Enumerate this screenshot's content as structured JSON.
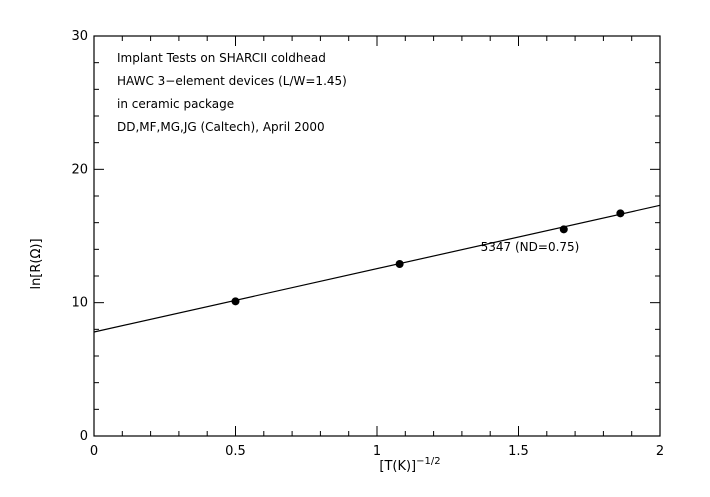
{
  "chart_data": {
    "type": "scatter",
    "xlabel": "[T(K)]",
    "xlabel_superscript": "−1/2",
    "ylabel": "ln[R(Ω)]",
    "xlim": [
      0,
      2
    ],
    "ylim": [
      0,
      30
    ],
    "x_ticks": [
      0,
      0.5,
      1,
      1.5,
      2
    ],
    "x_tick_labels": [
      "0",
      "0.5",
      "1",
      "1.5",
      "2"
    ],
    "y_ticks": [
      0,
      10,
      20,
      30
    ],
    "y_tick_labels": [
      "0",
      "10",
      "20",
      "30"
    ],
    "grid": false,
    "legend": "none",
    "annotations": [
      "Implant Tests on SHARCII coldhead",
      "HAWC 3−element devices (L/W=1.45)",
      "in ceramic package",
      "DD,MF,MG,JG (Caltech), April 2000"
    ],
    "series": [
      {
        "label": "5347 (ND=0.75)",
        "points": [
          {
            "x": 0.5,
            "y": 10.1
          },
          {
            "x": 1.08,
            "y": 12.9
          },
          {
            "x": 1.66,
            "y": 15.5
          },
          {
            "x": 1.86,
            "y": 16.7
          }
        ],
        "fit_line": {
          "x": [
            0,
            2
          ],
          "y": [
            7.8,
            17.3
          ]
        }
      }
    ]
  }
}
